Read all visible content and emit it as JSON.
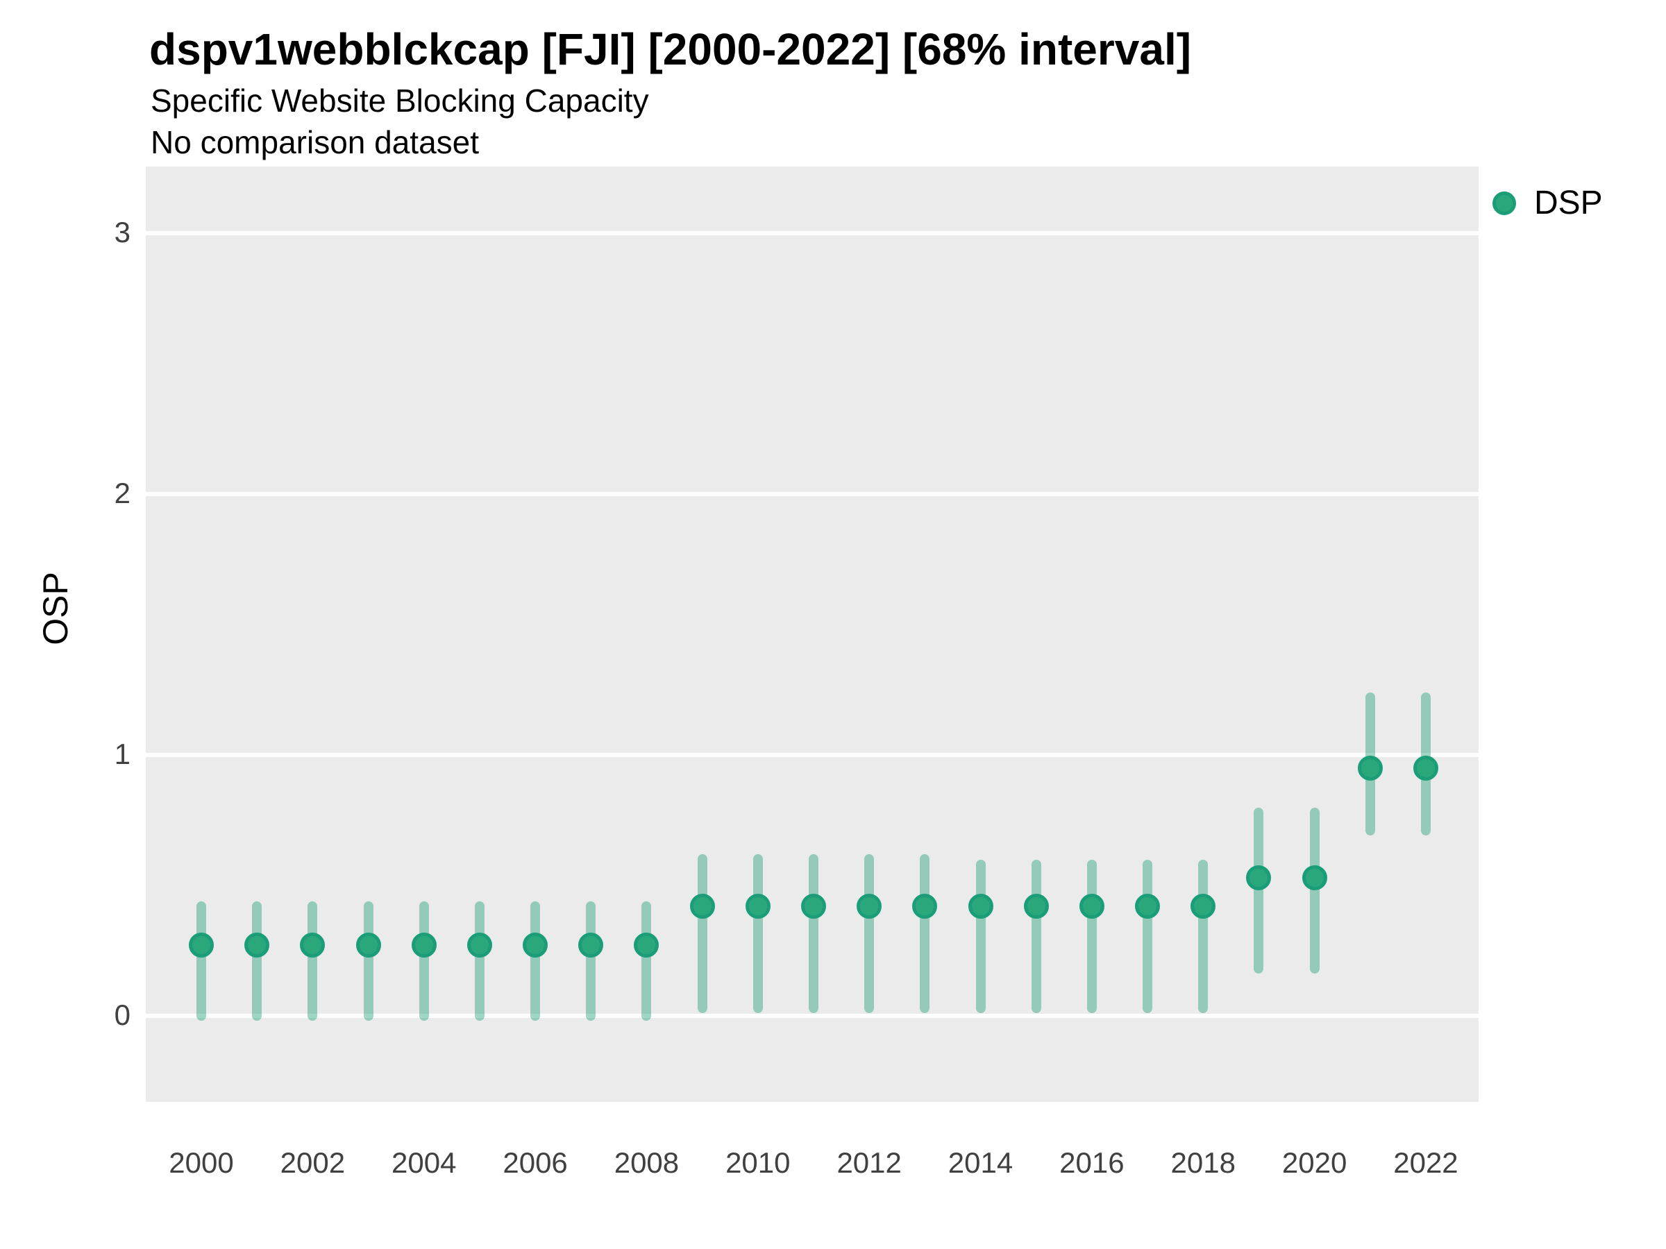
{
  "page": {
    "title": "dspv1webblckcap [FJI] [2000-2022] [68% interval]",
    "subtitle": "Specific Website Blocking Capacity",
    "comparison_note": "No comparison dataset"
  },
  "axes": {
    "y_label": "OSP"
  },
  "legend": {
    "label": "DSP"
  },
  "colors": {
    "panel_bg": "#ebebeb",
    "gridline": "#ffffff",
    "point_fill": "#2aa87c",
    "point_stroke": "#1b9e77",
    "interval_bar": "rgba(27,158,119,0.42)",
    "tick_text": "#404040",
    "title_text": "#000000"
  },
  "chart_data": {
    "type": "pointrange",
    "title": "dspv1webblckcap [FJI] [2000-2022] [68% interval]",
    "subtitle": "Specific Website Blocking Capacity",
    "note": "No comparison dataset",
    "interval_level": "68%",
    "xlabel": "",
    "ylabel": "OSP",
    "ylim": [
      -0.33,
      3.26
    ],
    "y_ticks": [
      0,
      1,
      2,
      3
    ],
    "x_ticks": [
      2000,
      2002,
      2004,
      2006,
      2008,
      2010,
      2012,
      2014,
      2016,
      2018,
      2020,
      2022
    ],
    "grid": "horizontal-major-only",
    "legend_position": "right",
    "series": [
      {
        "name": "DSP",
        "x": [
          2000,
          2001,
          2002,
          2003,
          2004,
          2005,
          2006,
          2007,
          2008,
          2009,
          2010,
          2011,
          2012,
          2013,
          2014,
          2015,
          2016,
          2017,
          2018,
          2019,
          2020,
          2021,
          2022
        ],
        "estimate": [
          0.27,
          0.27,
          0.27,
          0.27,
          0.27,
          0.27,
          0.27,
          0.27,
          0.27,
          0.42,
          0.42,
          0.42,
          0.42,
          0.42,
          0.42,
          0.42,
          0.42,
          0.42,
          0.42,
          0.53,
          0.53,
          0.95,
          0.95
        ],
        "lower": [
          0.0,
          0.0,
          0.0,
          0.0,
          0.0,
          0.0,
          0.0,
          0.0,
          0.0,
          0.03,
          0.03,
          0.03,
          0.03,
          0.03,
          0.03,
          0.03,
          0.03,
          0.03,
          0.03,
          0.18,
          0.18,
          0.71,
          0.71
        ],
        "upper": [
          0.42,
          0.42,
          0.42,
          0.42,
          0.42,
          0.42,
          0.42,
          0.42,
          0.42,
          0.6,
          0.6,
          0.6,
          0.6,
          0.6,
          0.58,
          0.58,
          0.58,
          0.58,
          0.58,
          0.78,
          0.78,
          1.22,
          1.22
        ]
      }
    ]
  }
}
